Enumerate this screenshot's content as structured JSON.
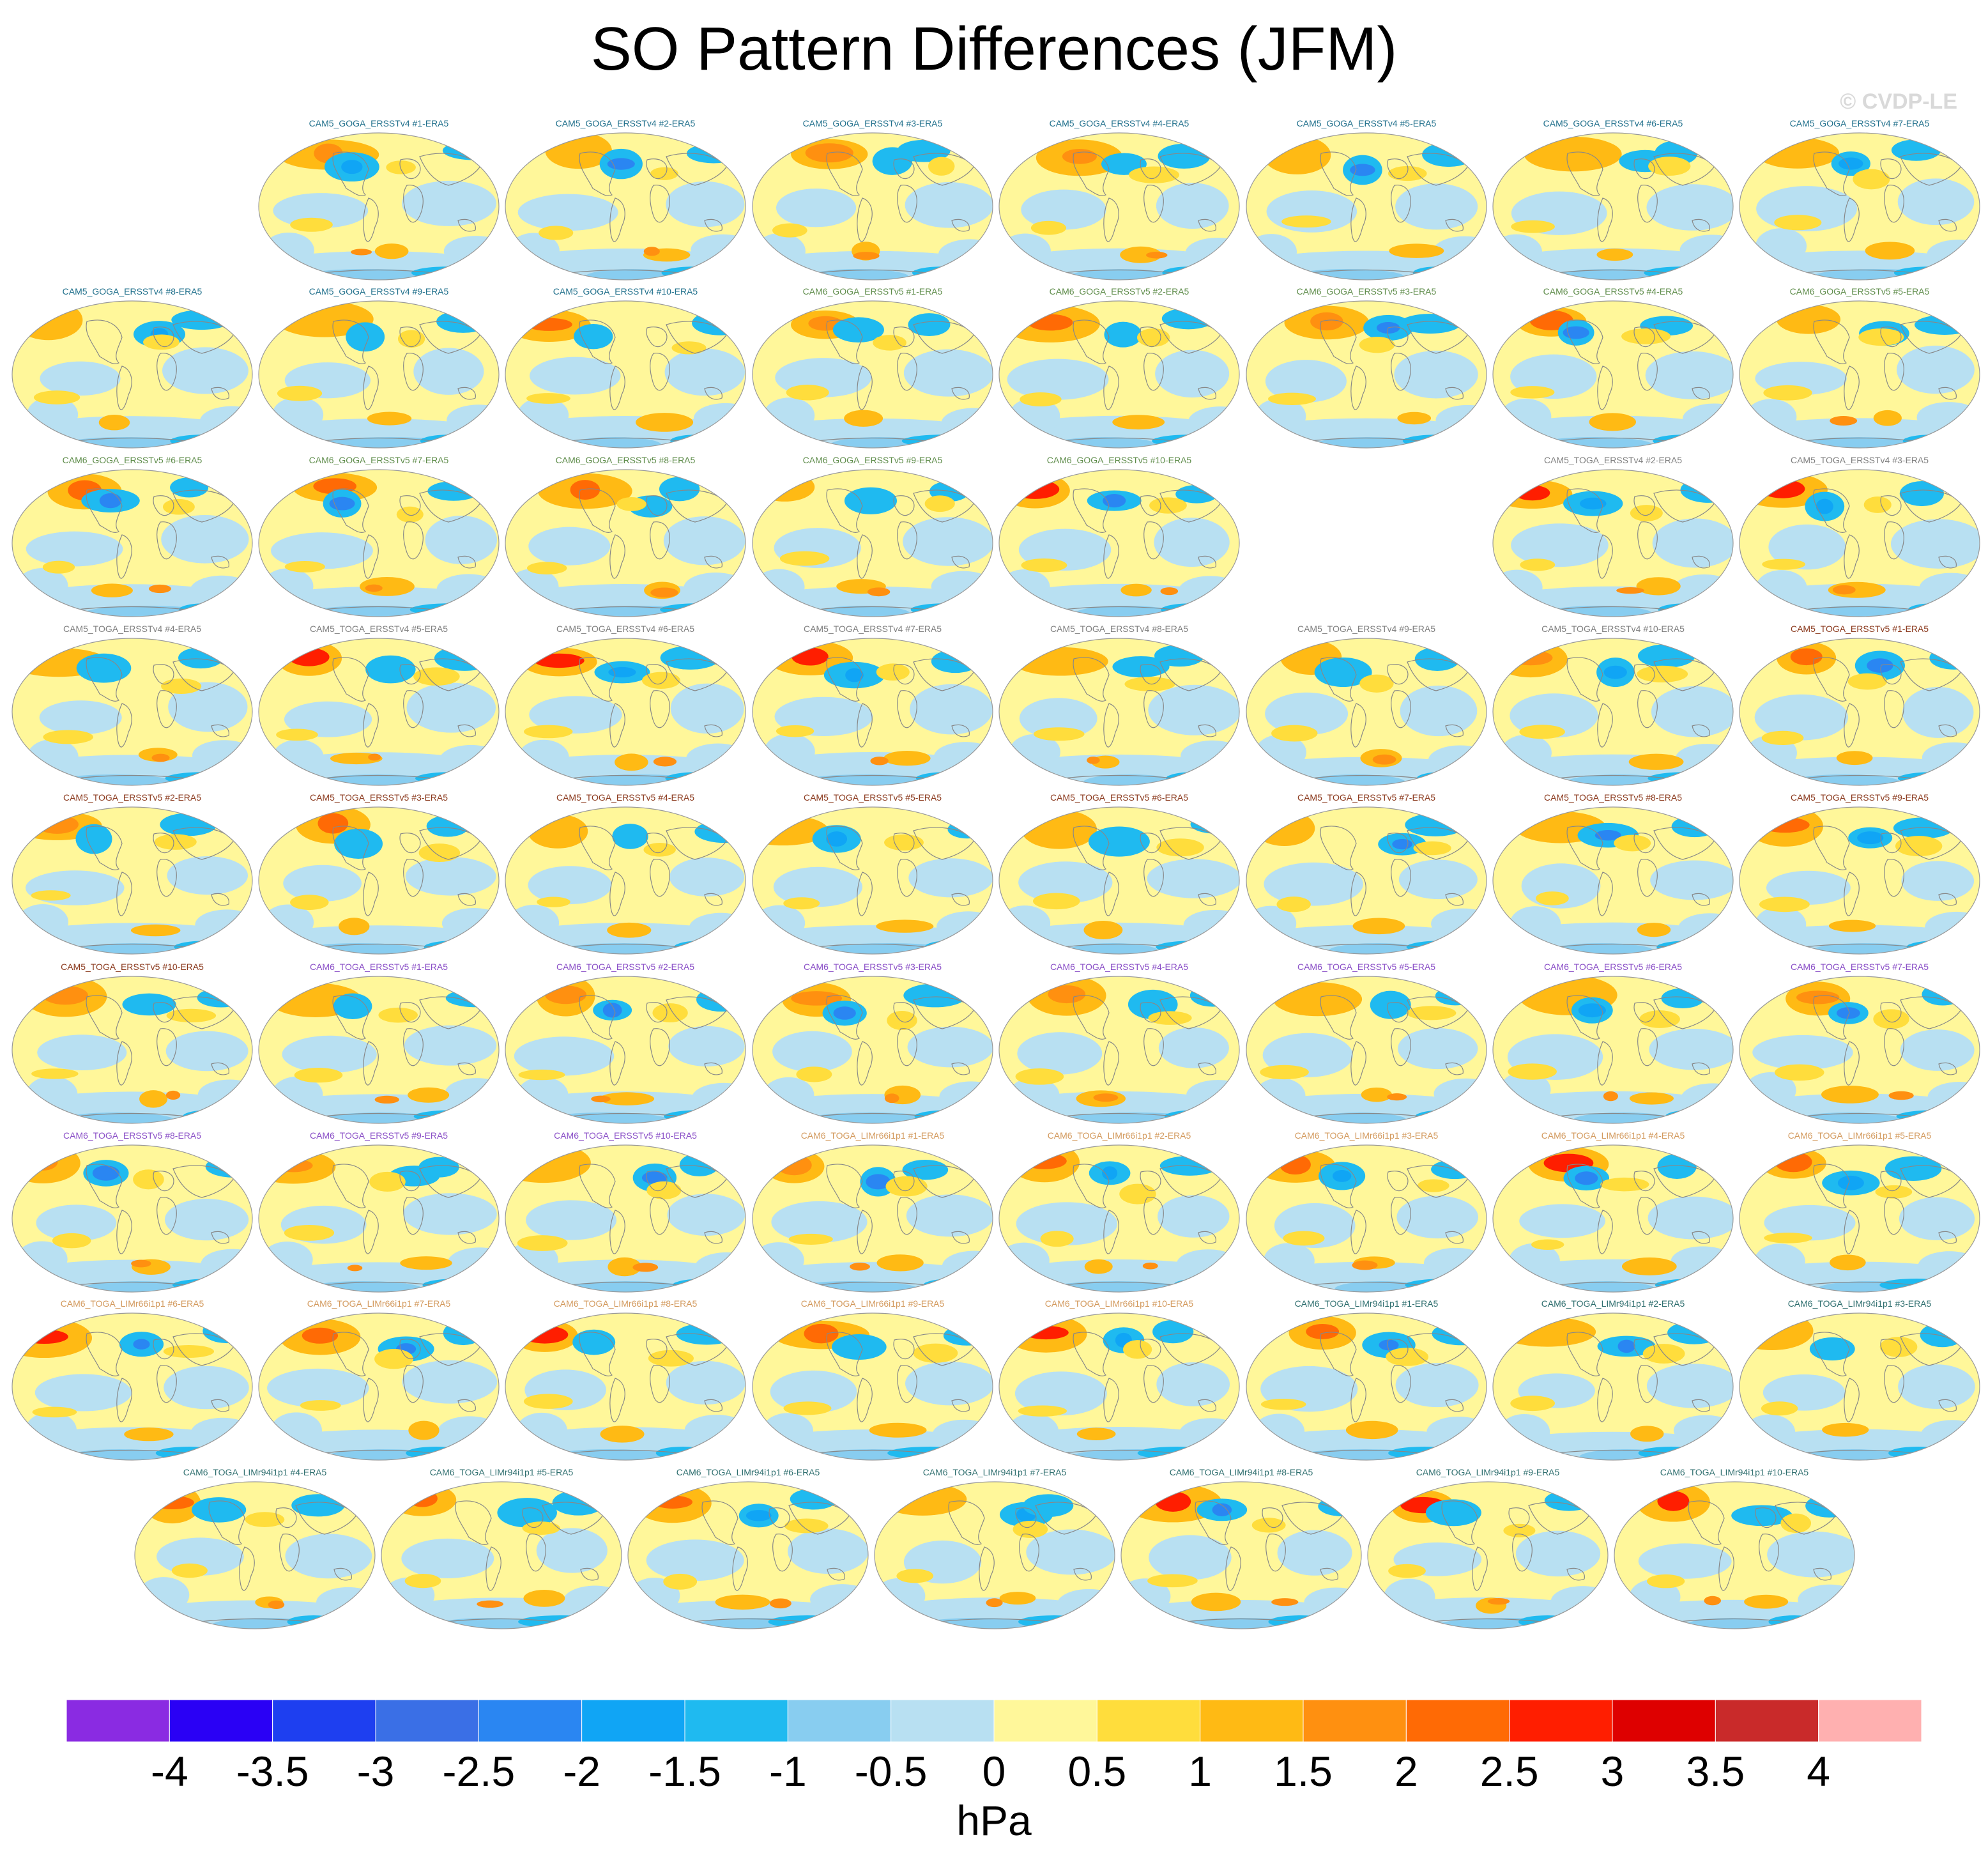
{
  "title": "SO Pattern Differences (JFM)",
  "copyright": "© CVDP-LE",
  "colors": {
    "label_cam5_goga": "#1f6f8b",
    "label_cam6_goga": "#5e8c4a",
    "label_cam5_toga_v4": "#808080",
    "label_cam5_toga_v5": "#8b3a1e",
    "label_cam6_toga_v5": "#8a4fc7",
    "label_cam6_toga_limr66": "#d39a5e",
    "label_cam6_toga_limr94": "#2f6f6f",
    "map_outline": "#999999",
    "coastline": "#888888"
  },
  "panel_groups": [
    {
      "color_key": "label_cam5_goga",
      "labels": [
        "CAM5_GOGA_ERSSTv4 #1-ERA5",
        "CAM5_GOGA_ERSSTv4 #2-ERA5",
        "CAM5_GOGA_ERSSTv4 #3-ERA5",
        "CAM5_GOGA_ERSSTv4 #4-ERA5",
        "CAM5_GOGA_ERSSTv4 #5-ERA5",
        "CAM5_GOGA_ERSSTv4 #6-ERA5",
        "CAM5_GOGA_ERSSTv4 #7-ERA5",
        "CAM5_GOGA_ERSSTv4 #8-ERA5",
        "CAM5_GOGA_ERSSTv4 #9-ERA5",
        "CAM5_GOGA_ERSSTv4 #10-ERA5"
      ]
    },
    {
      "color_key": "label_cam6_goga",
      "labels": [
        "CAM6_GOGA_ERSSTv5 #1-ERA5",
        "CAM6_GOGA_ERSSTv5 #2-ERA5",
        "CAM6_GOGA_ERSSTv5 #3-ERA5",
        "CAM6_GOGA_ERSSTv5 #4-ERA5",
        "CAM6_GOGA_ERSSTv5 #5-ERA5",
        "CAM6_GOGA_ERSSTv5 #6-ERA5",
        "CAM6_GOGA_ERSSTv5 #7-ERA5",
        "CAM6_GOGA_ERSSTv5 #8-ERA5",
        "CAM6_GOGA_ERSSTv5 #9-ERA5",
        "CAM6_GOGA_ERSSTv5 #10-ERA5"
      ]
    },
    {
      "color_key": "label_cam5_toga_v4",
      "labels": [
        "CAM5_TOGA_ERSSTv4 #2-ERA5",
        "CAM5_TOGA_ERSSTv4 #3-ERA5",
        "CAM5_TOGA_ERSSTv4 #4-ERA5",
        "CAM5_TOGA_ERSSTv4 #5-ERA5",
        "CAM5_TOGA_ERSSTv4 #6-ERA5",
        "CAM5_TOGA_ERSSTv4 #7-ERA5",
        "CAM5_TOGA_ERSSTv4 #8-ERA5",
        "CAM5_TOGA_ERSSTv4 #9-ERA5",
        "CAM5_TOGA_ERSSTv4 #10-ERA5"
      ]
    },
    {
      "color_key": "label_cam5_toga_v5",
      "labels": [
        "CAM5_TOGA_ERSSTv5 #1-ERA5",
        "CAM5_TOGA_ERSSTv5 #2-ERA5",
        "CAM5_TOGA_ERSSTv5 #3-ERA5",
        "CAM5_TOGA_ERSSTv5 #4-ERA5",
        "CAM5_TOGA_ERSSTv5 #5-ERA5",
        "CAM5_TOGA_ERSSTv5 #6-ERA5",
        "CAM5_TOGA_ERSSTv5 #7-ERA5",
        "CAM5_TOGA_ERSSTv5 #8-ERA5",
        "CAM5_TOGA_ERSSTv5 #9-ERA5",
        "CAM5_TOGA_ERSSTv5 #10-ERA5"
      ]
    },
    {
      "color_key": "label_cam6_toga_v5",
      "labels": [
        "CAM6_TOGA_ERSSTv5 #1-ERA5",
        "CAM6_TOGA_ERSSTv5 #2-ERA5",
        "CAM6_TOGA_ERSSTv5 #3-ERA5",
        "CAM6_TOGA_ERSSTv5 #4-ERA5",
        "CAM6_TOGA_ERSSTv5 #5-ERA5",
        "CAM6_TOGA_ERSSTv5 #6-ERA5",
        "CAM6_TOGA_ERSSTv5 #7-ERA5",
        "CAM6_TOGA_ERSSTv5 #8-ERA5",
        "CAM6_TOGA_ERSSTv5 #9-ERA5",
        "CAM6_TOGA_ERSSTv5 #10-ERA5"
      ]
    },
    {
      "color_key": "label_cam6_toga_limr66",
      "labels": [
        "CAM6_TOGA_LIMr66i1p1 #1-ERA5",
        "CAM6_TOGA_LIMr66i1p1 #2-ERA5",
        "CAM6_TOGA_LIMr66i1p1 #3-ERA5",
        "CAM6_TOGA_LIMr66i1p1 #4-ERA5",
        "CAM6_TOGA_LIMr66i1p1 #5-ERA5",
        "CAM6_TOGA_LIMr66i1p1 #6-ERA5",
        "CAM6_TOGA_LIMr66i1p1 #7-ERA5",
        "CAM6_TOGA_LIMr66i1p1 #8-ERA5",
        "CAM6_TOGA_LIMr66i1p1 #9-ERA5",
        "CAM6_TOGA_LIMr66i1p1 #10-ERA5"
      ]
    },
    {
      "color_key": "label_cam6_toga_limr94",
      "labels": [
        "CAM6_TOGA_LIMr94i1p1 #1-ERA5",
        "CAM6_TOGA_LIMr94i1p1 #2-ERA5",
        "CAM6_TOGA_LIMr94i1p1 #3-ERA5",
        "CAM6_TOGA_LIMr94i1p1 #4-ERA5",
        "CAM6_TOGA_LIMr94i1p1 #5-ERA5",
        "CAM6_TOGA_LIMr94i1p1 #6-ERA5",
        "CAM6_TOGA_LIMr94i1p1 #7-ERA5",
        "CAM6_TOGA_LIMr94i1p1 #8-ERA5",
        "CAM6_TOGA_LIMr94i1p1 #9-ERA5",
        "CAM6_TOGA_LIMr94i1p1 #10-ERA5"
      ]
    }
  ],
  "colorbar": {
    "units": "hPa",
    "tick_labels": [
      "-4",
      "-3.5",
      "-3",
      "-2.5",
      "-2",
      "-1.5",
      "-1",
      "-0.5",
      "0",
      "0.5",
      "1",
      "1.5",
      "2",
      "2.5",
      "3",
      "3.5",
      "4"
    ],
    "colors": [
      "#8a2be2",
      "#2a00f5",
      "#1e3ff0",
      "#3a6fe6",
      "#2a86f2",
      "#10a5f5",
      "#1fbaf0",
      "#88cdf0",
      "#b8e0f2",
      "#fff79a",
      "#ffdd3c",
      "#ffba14",
      "#ff9010",
      "#ff6a05",
      "#ff1e00",
      "#de0000",
      "#c92a2a",
      "#ffb0b0"
    ]
  }
}
